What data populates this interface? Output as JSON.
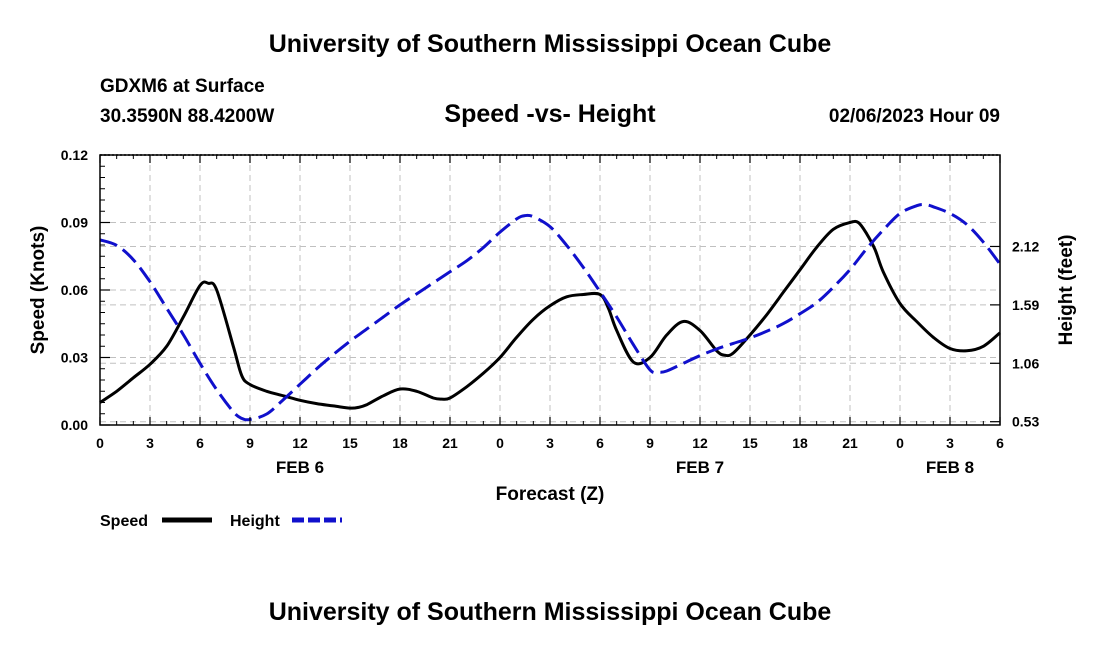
{
  "header": {
    "title": "University of Southern Mississippi Ocean Cube",
    "station": "GDXM6 at Surface",
    "coordinates": "30.3590N  88.4200W",
    "subtitle": "Speed -vs- Height",
    "datetime": "02/06/2023 Hour 09"
  },
  "footer": {
    "title": "University of Southern Mississippi Ocean Cube"
  },
  "chart_data": {
    "type": "line",
    "title": "Speed -vs- Height",
    "xlabel": "Forecast (Z)",
    "ylabel": "Speed (Knots)",
    "y2label": "Height (feet)",
    "x_range": [
      0,
      54
    ],
    "x_tick_values": [
      0,
      3,
      6,
      9,
      12,
      15,
      18,
      21,
      24,
      27,
      30,
      33,
      36,
      39,
      42,
      45,
      48,
      51,
      54
    ],
    "x_tick_labels": [
      "0",
      "3",
      "6",
      "9",
      "12",
      "15",
      "18",
      "21",
      "0",
      "3",
      "6",
      "9",
      "12",
      "15",
      "18",
      "21",
      "0",
      "3",
      "6"
    ],
    "date_labels": [
      {
        "x": 12,
        "label": "FEB 6"
      },
      {
        "x": 36,
        "label": "FEB 7"
      },
      {
        "x": 51,
        "label": "FEB 8"
      }
    ],
    "ylim": [
      0,
      0.12
    ],
    "y_tick_values": [
      0,
      0.03,
      0.06,
      0.09,
      0.12
    ],
    "y_tick_labels": [
      "0.00",
      "0.03",
      "0.06",
      "0.09",
      "0.12"
    ],
    "y2lim": [
      0.5,
      2.95
    ],
    "y2_tick_values": [
      0.53,
      1.06,
      1.59,
      2.12
    ],
    "y2_tick_labels": [
      "0.53",
      "1.06",
      "1.59",
      "2.12"
    ],
    "grid": true,
    "legend_position": "bottom-left",
    "colors": {
      "speed": "#000000",
      "height": "#1010cc",
      "grid": "#c0c0c0"
    },
    "series": [
      {
        "name": "Speed",
        "axis": "left",
        "style": "solid",
        "x": [
          0,
          1,
          2,
          3,
          4,
          5,
          6,
          6.5,
          7,
          8,
          8.5,
          9,
          10,
          11,
          12,
          13,
          14,
          15,
          15.5,
          16,
          17,
          18,
          19,
          20,
          20.5,
          21,
          22,
          23,
          24,
          25,
          26,
          27,
          28,
          29,
          30,
          30.5,
          31,
          32,
          33,
          34,
          35,
          36,
          37,
          37.5,
          38,
          39,
          40,
          41,
          42,
          43,
          44,
          45,
          45.5,
          46,
          46.5,
          47,
          48,
          49,
          50,
          51,
          52,
          53,
          54
        ],
        "values": [
          0.01,
          0.015,
          0.021,
          0.027,
          0.035,
          0.048,
          0.062,
          0.063,
          0.06,
          0.035,
          0.022,
          0.018,
          0.015,
          0.013,
          0.011,
          0.0095,
          0.0085,
          0.0075,
          0.0078,
          0.009,
          0.013,
          0.016,
          0.015,
          0.012,
          0.0115,
          0.012,
          0.017,
          0.023,
          0.03,
          0.039,
          0.047,
          0.053,
          0.057,
          0.058,
          0.058,
          0.052,
          0.042,
          0.028,
          0.03,
          0.04,
          0.046,
          0.042,
          0.033,
          0.031,
          0.032,
          0.04,
          0.049,
          0.059,
          0.069,
          0.079,
          0.087,
          0.09,
          0.09,
          0.085,
          0.078,
          0.068,
          0.054,
          0.046,
          0.039,
          0.034,
          0.033,
          0.035,
          0.041
        ]
      },
      {
        "name": "Height",
        "axis": "right",
        "style": "dashed",
        "x": [
          0,
          1,
          2,
          3,
          4,
          5,
          6,
          7,
          8,
          8.5,
          9,
          10,
          11,
          12,
          13,
          14,
          15,
          16,
          17,
          18,
          19,
          20,
          21,
          22,
          23,
          24,
          25,
          25.5,
          26,
          27,
          28,
          29,
          30,
          31,
          32,
          33,
          33.5,
          34,
          35,
          36,
          37,
          38,
          39,
          40,
          41,
          42,
          43,
          44,
          45,
          46,
          47,
          48,
          49,
          49.5,
          50,
          51,
          52,
          53,
          54
        ],
        "values": [
          2.18,
          2.13,
          2.0,
          1.8,
          1.56,
          1.32,
          1.06,
          0.82,
          0.62,
          0.56,
          0.55,
          0.6,
          0.73,
          0.87,
          1.01,
          1.14,
          1.26,
          1.37,
          1.48,
          1.59,
          1.69,
          1.79,
          1.89,
          1.99,
          2.11,
          2.25,
          2.37,
          2.4,
          2.39,
          2.3,
          2.13,
          1.93,
          1.71,
          1.48,
          1.23,
          1.0,
          0.98,
          0.99,
          1.06,
          1.13,
          1.19,
          1.24,
          1.29,
          1.35,
          1.42,
          1.51,
          1.61,
          1.75,
          1.91,
          2.1,
          2.27,
          2.42,
          2.49,
          2.5,
          2.48,
          2.42,
          2.32,
          2.16,
          1.96
        ]
      }
    ]
  }
}
